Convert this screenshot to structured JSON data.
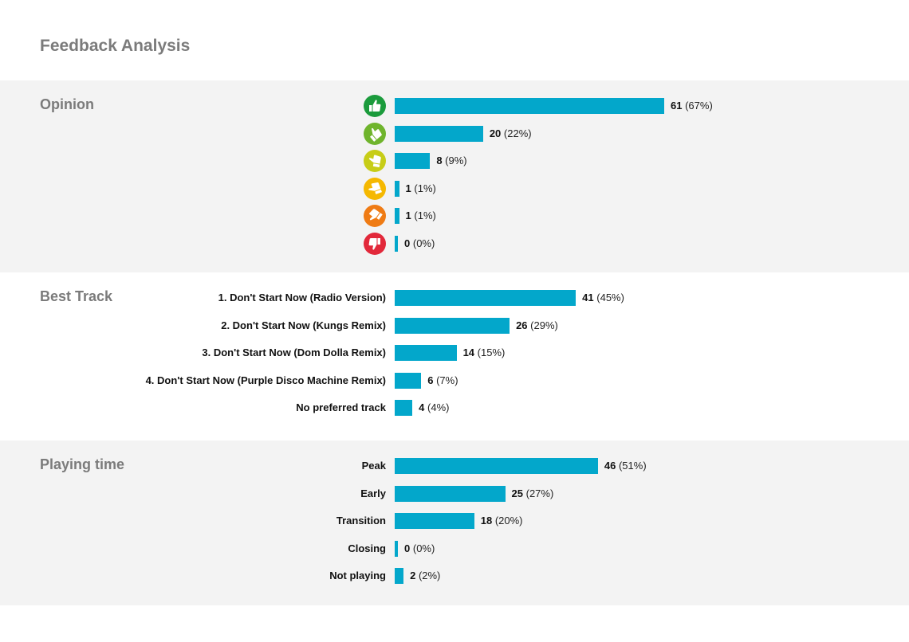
{
  "page": {
    "title": "Feedback Analysis"
  },
  "colors": {
    "bar": "#03a7cb",
    "opinion_icons": [
      "#1b9b3c",
      "#6fb42c",
      "#c7cd17",
      "#f5b800",
      "#ef7b14",
      "#e2283a"
    ]
  },
  "chart_data": [
    {
      "type": "bar",
      "orientation": "horizontal",
      "title": "Opinion",
      "categories": [
        "very-positive-icon",
        "positive-icon",
        "neutral-positive-icon",
        "neutral-negative-icon",
        "negative-icon",
        "very-negative-icon"
      ],
      "category_icons": [
        "thumbs-up-icon",
        "thumb-angled-up-icon",
        "thumb-slight-up-icon",
        "thumb-slight-down-icon",
        "thumb-angled-down-icon",
        "thumbs-down-icon"
      ],
      "values": [
        61,
        20,
        8,
        1,
        1,
        0
      ],
      "percents": [
        "(67%)",
        "(22%)",
        "(9%)",
        "(1%)",
        "(1%)",
        "(0%)"
      ],
      "xlim": [
        0,
        61
      ]
    },
    {
      "type": "bar",
      "orientation": "horizontal",
      "title": "Best Track",
      "categories": [
        "1. Don't Start Now (Radio Version)",
        "2. Don't Start Now (Kungs Remix)",
        "3. Don't Start Now (Dom Dolla Remix)",
        "4. Don't Start Now (Purple Disco Machine Remix)",
        "No preferred track"
      ],
      "values": [
        41,
        26,
        14,
        6,
        4
      ],
      "percents": [
        "(45%)",
        "(29%)",
        "(15%)",
        "(7%)",
        "(4%)"
      ],
      "xlim": [
        0,
        61
      ]
    },
    {
      "type": "bar",
      "orientation": "horizontal",
      "title": "Playing time",
      "categories": [
        "Peak",
        "Early",
        "Transition",
        "Closing",
        "Not playing"
      ],
      "values": [
        46,
        25,
        18,
        0,
        2
      ],
      "percents": [
        "(51%)",
        "(27%)",
        "(20%)",
        "(0%)",
        "(2%)"
      ],
      "xlim": [
        0,
        61
      ]
    }
  ]
}
